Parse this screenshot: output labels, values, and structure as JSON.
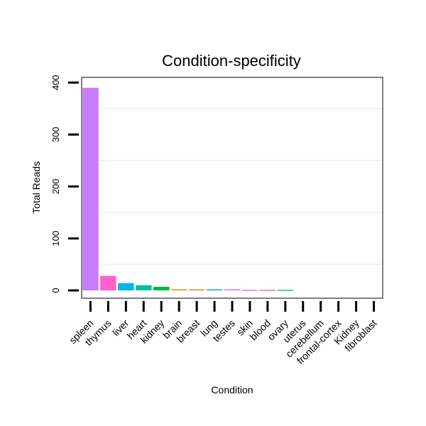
{
  "chart_data": {
    "type": "bar",
    "title": "Condition-specificity",
    "xlabel": "Condition",
    "ylabel": "Total Reads",
    "categories": [
      "spleen",
      "thymus",
      "liver",
      "heart",
      "kidney",
      "brain",
      "breast",
      "lung",
      "testes",
      "skin",
      "blood",
      "ovary",
      "uterus",
      "cerebellum",
      "frontal-cortex",
      "Kidney",
      "fibroblast"
    ],
    "values": [
      390,
      28,
      14,
      10,
      7,
      2,
      2,
      2,
      2,
      1,
      1,
      1,
      0,
      0,
      0,
      0,
      0
    ],
    "colors": [
      "#C77CFF",
      "#FF61CC",
      "#00B8E7",
      "#00C19A",
      "#00BA38",
      "#CD9600",
      "#E68613",
      "#00A9FF",
      "#FF61CC",
      "#C77CFF",
      "#F8766D",
      "#00BFC4",
      "#7CAE00",
      "#ABA300",
      "#8494FF",
      "#0CB702",
      "#ED68ED"
    ],
    "yticks": [
      0,
      100,
      200,
      300,
      400
    ],
    "ylim": [
      -15,
      410
    ],
    "grid": true,
    "legend": "none"
  }
}
